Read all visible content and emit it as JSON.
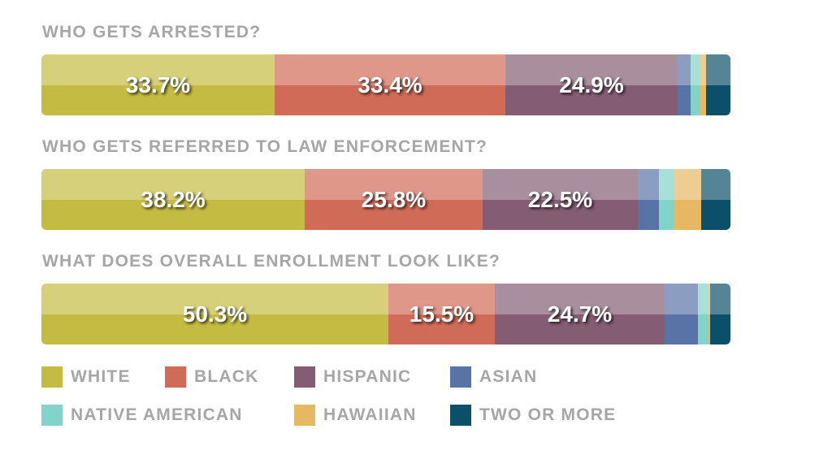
{
  "chart_data": {
    "type": "bar",
    "orientation": "horizontal-stacked",
    "categories": [
      "WHO GETS ARRESTED?",
      "WHO GETS REFERRED TO LAW ENFORCEMENT?",
      "WHAT DOES OVERALL ENROLLMENT LOOK LIKE?"
    ],
    "series": [
      {
        "name": "WHITE",
        "color": "#c4bc42",
        "values": [
          33.7,
          38.2,
          50.3
        ],
        "labels": [
          "33.7%",
          "38.2%",
          "50.3%"
        ]
      },
      {
        "name": "BLACK",
        "color": "#d06b57",
        "values": [
          33.4,
          25.8,
          15.5
        ],
        "labels": [
          "33.4%",
          "25.8%",
          "15.5%"
        ]
      },
      {
        "name": "HISPANIC",
        "color": "#845d74",
        "values": [
          24.9,
          22.5,
          24.7
        ],
        "labels": [
          "24.9%",
          "22.5%",
          "24.7%"
        ]
      },
      {
        "name": "ASIAN",
        "color": "#5a73a7",
        "values": [
          1.8,
          3.1,
          4.8
        ],
        "labels": [
          "",
          "",
          ""
        ]
      },
      {
        "name": "NATIVE AMERICAN",
        "color": "#82d3c9",
        "values": [
          1.4,
          2.2,
          1.4
        ],
        "labels": [
          "",
          "",
          ""
        ]
      },
      {
        "name": "HAWAIIAN",
        "color": "#e6b863",
        "values": [
          0.9,
          4.0,
          0.3
        ],
        "labels": [
          "",
          "",
          ""
        ]
      },
      {
        "name": "TWO OR MORE",
        "color": "#0b5068",
        "values": [
          3.5,
          4.2,
          3.0
        ],
        "labels": [
          "",
          "",
          ""
        ]
      }
    ],
    "xlim": [
      0,
      100
    ],
    "legend_position": "bottom",
    "grid": false
  }
}
